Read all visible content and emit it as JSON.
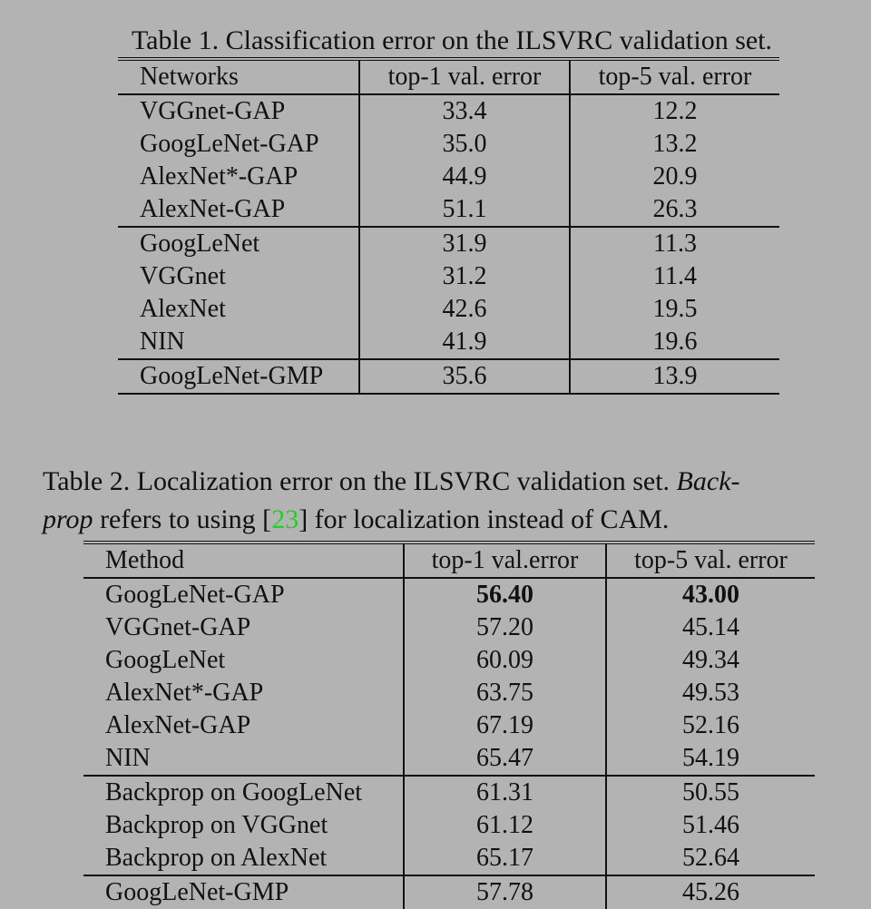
{
  "table1": {
    "caption": "Table 1. Classification error on the ILSVRC validation set.",
    "headers": [
      "Networks",
      "top-1 val. error",
      "top-5 val. error"
    ],
    "rows": [
      [
        "VGGnet-GAP",
        "33.4",
        "12.2"
      ],
      [
        "GoogLeNet-GAP",
        "35.0",
        "13.2"
      ],
      [
        "AlexNet*-GAP",
        "44.9",
        "20.9"
      ],
      [
        "AlexNet-GAP",
        "51.1",
        "26.3"
      ],
      [
        "GoogLeNet",
        "31.9",
        "11.3"
      ],
      [
        "VGGnet",
        "31.2",
        "11.4"
      ],
      [
        "AlexNet",
        "42.6",
        "19.5"
      ],
      [
        "NIN",
        "41.9",
        "19.6"
      ],
      [
        "GoogLeNet-GMP",
        "35.6",
        "13.9"
      ]
    ]
  },
  "table2": {
    "caption": {
      "part1": "Table 2. Localization error on the ILSVRC validation set. ",
      "italic1": "Back-",
      "italic2": "prop",
      "part2": " refers to using [",
      "citation": "23",
      "part3": "] for localization instead of CAM."
    },
    "headers": [
      "Method",
      "top-1 val.error",
      "top-5 val. error"
    ],
    "rows": [
      [
        "GoogLeNet-GAP",
        "56.40",
        "43.00"
      ],
      [
        "VGGnet-GAP",
        "57.20",
        "45.14"
      ],
      [
        "GoogLeNet",
        "60.09",
        "49.34"
      ],
      [
        "AlexNet*-GAP",
        "63.75",
        "49.53"
      ],
      [
        "AlexNet-GAP",
        "67.19",
        "52.16"
      ],
      [
        "NIN",
        "65.47",
        "54.19"
      ],
      [
        "Backprop on GoogLeNet",
        "61.31",
        "50.55"
      ],
      [
        "Backprop on VGGnet",
        "61.12",
        "51.46"
      ],
      [
        "Backprop on AlexNet",
        "65.17",
        "52.64"
      ],
      [
        "GoogLeNet-GMP",
        "57.78",
        "45.26"
      ]
    ]
  },
  "colors": {
    "background": "#b3b3b3",
    "citation": "#1fd11f"
  }
}
